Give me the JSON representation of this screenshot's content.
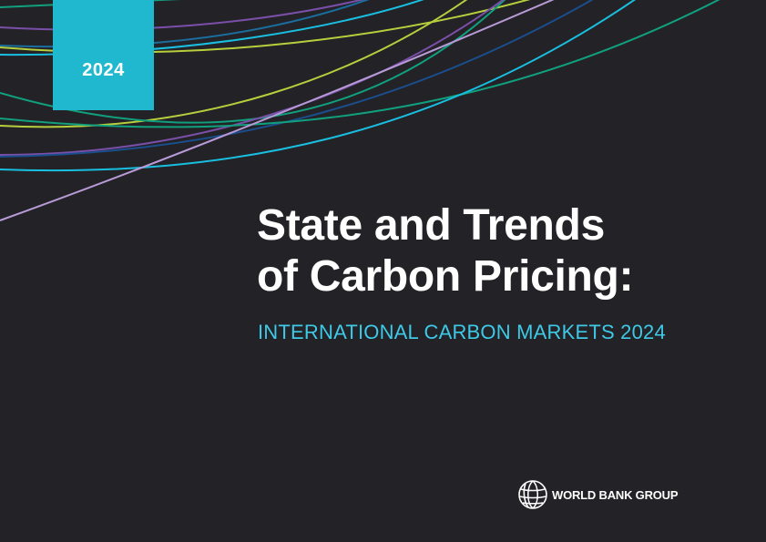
{
  "cover": {
    "year_badge": "2024",
    "title_line1": "State and Trends",
    "title_line2": "of Carbon Pricing:",
    "subtitle": "INTERNATIONAL CARBON MARKETS 2024",
    "publisher": "WORLD BANK GROUP"
  },
  "colors": {
    "background": "#232227",
    "accent_cyan": "#1fb8cf",
    "subtitle": "#3ec9e6",
    "curve_lime": "#b7cf3c",
    "curve_purple": "#7a4fa8",
    "curve_teal": "#11a07e",
    "curve_blue": "#1a4e8c",
    "curve_lavender": "#b79ad6",
    "curve_cyan": "#19bfe0"
  },
  "icons": {
    "logo": "world-bank-globe-icon"
  }
}
